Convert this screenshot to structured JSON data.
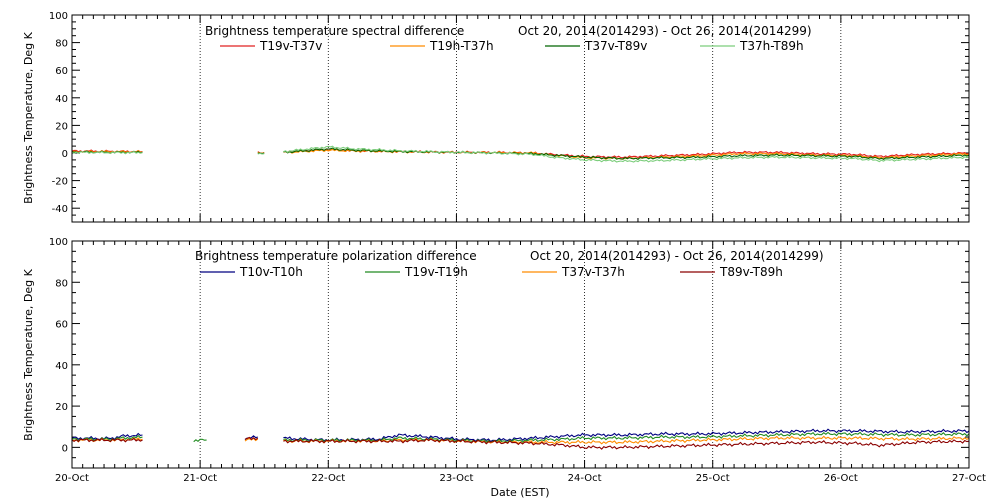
{
  "chart_data": [
    {
      "type": "line",
      "title": "Brightness temperature spectral difference",
      "date_range": "Oct 20, 2014(2014293) - Oct 26, 2014(2014299)",
      "ylabel": "Brightness Temperature, Deg K",
      "xlabel": "",
      "xlim": [
        20,
        27
      ],
      "ylim": [
        -50,
        100
      ],
      "yticks": [
        -40,
        -20,
        0,
        20,
        40,
        60,
        80,
        100
      ],
      "xgrid": [
        21,
        22,
        23,
        24,
        25,
        26
      ],
      "grid": "vertical dotted",
      "legend": "top",
      "series": [
        {
          "name": "T19v-T37v",
          "color": "#e02020",
          "segments": [
            [
              [
                20.0,
                1.5
              ],
              [
                20.3,
                1.2
              ],
              [
                20.55,
                1.0
              ]
            ],
            [
              [
                21.45,
                0.5
              ],
              [
                21.5,
                0.3
              ]
            ],
            [
              [
                21.65,
                0.5
              ],
              [
                21.8,
                1.5
              ],
              [
                22.0,
                2.5
              ],
              [
                22.2,
                1.5
              ],
              [
                22.6,
                1.0
              ],
              [
                23.0,
                0.5
              ],
              [
                23.3,
                0.5
              ],
              [
                23.6,
                0.0
              ],
              [
                23.75,
                -1.0
              ],
              [
                24.0,
                -2.5
              ],
              [
                24.3,
                -3.0
              ],
              [
                24.6,
                -2.0
              ],
              [
                24.9,
                -1.0
              ],
              [
                25.2,
                0.5
              ],
              [
                25.5,
                0.5
              ],
              [
                25.8,
                -0.5
              ],
              [
                26.1,
                -1.0
              ],
              [
                26.3,
                -2.5
              ],
              [
                26.6,
                -1.0
              ],
              [
                27.0,
                0.0
              ]
            ]
          ]
        },
        {
          "name": "T19h-T37h",
          "color": "#ff8c00",
          "segments": [
            [
              [
                20.0,
                1.0
              ],
              [
                20.3,
                1.0
              ],
              [
                20.55,
                0.8
              ]
            ],
            [
              [
                21.45,
                0.5
              ],
              [
                21.5,
                0.2
              ]
            ],
            [
              [
                21.65,
                0.3
              ],
              [
                21.8,
                1.0
              ],
              [
                22.0,
                2.0
              ],
              [
                22.2,
                1.5
              ],
              [
                22.6,
                0.8
              ],
              [
                23.0,
                0.5
              ],
              [
                23.3,
                0.3
              ],
              [
                23.6,
                0.0
              ],
              [
                23.75,
                -1.5
              ],
              [
                24.0,
                -3.5
              ],
              [
                24.3,
                -4.0
              ],
              [
                24.6,
                -3.0
              ],
              [
                24.9,
                -2.0
              ],
              [
                25.2,
                -0.5
              ],
              [
                25.5,
                -0.5
              ],
              [
                25.8,
                -1.5
              ],
              [
                26.1,
                -2.0
              ],
              [
                26.3,
                -3.5
              ],
              [
                26.6,
                -2.0
              ],
              [
                27.0,
                -0.5
              ]
            ]
          ]
        },
        {
          "name": "T37v-T89v",
          "color": "#006400",
          "segments": [
            [
              [
                20.0,
                0.8
              ],
              [
                20.3,
                0.5
              ],
              [
                20.55,
                0.5
              ]
            ],
            [
              [
                21.45,
                0.0
              ],
              [
                21.5,
                0.0
              ]
            ],
            [
              [
                21.65,
                0.5
              ],
              [
                21.8,
                1.5
              ],
              [
                22.0,
                3.0
              ],
              [
                22.2,
                2.0
              ],
              [
                22.6,
                1.0
              ],
              [
                23.0,
                0.5
              ],
              [
                23.3,
                0.0
              ],
              [
                23.6,
                -0.5
              ],
              [
                23.75,
                -1.5
              ],
              [
                24.0,
                -3.0
              ],
              [
                24.3,
                -4.0
              ],
              [
                24.6,
                -3.5
              ],
              [
                24.9,
                -3.0
              ],
              [
                25.2,
                -2.0
              ],
              [
                25.5,
                -1.5
              ],
              [
                25.8,
                -2.0
              ],
              [
                26.1,
                -2.5
              ],
              [
                26.3,
                -4.0
              ],
              [
                26.6,
                -3.0
              ],
              [
                27.0,
                -1.5
              ]
            ]
          ]
        },
        {
          "name": "T37h-T89h",
          "color": "#7ccd7c",
          "segments": [
            [
              [
                20.0,
                0.5
              ],
              [
                20.3,
                0.3
              ],
              [
                20.55,
                0.3
              ]
            ],
            [
              [
                21.45,
                -0.5
              ],
              [
                21.5,
                -0.5
              ]
            ],
            [
              [
                21.65,
                1.0
              ],
              [
                21.8,
                2.5
              ],
              [
                22.0,
                4.5
              ],
              [
                22.2,
                3.0
              ],
              [
                22.6,
                1.5
              ],
              [
                23.0,
                0.5
              ],
              [
                23.3,
                0.0
              ],
              [
                23.6,
                -1.0
              ],
              [
                23.75,
                -3.0
              ],
              [
                24.0,
                -5.0
              ],
              [
                24.3,
                -6.0
              ],
              [
                24.6,
                -5.5
              ],
              [
                24.9,
                -4.5
              ],
              [
                25.2,
                -3.5
              ],
              [
                25.5,
                -3.0
              ],
              [
                25.8,
                -3.5
              ],
              [
                26.1,
                -4.0
              ],
              [
                26.3,
                -5.5
              ],
              [
                26.6,
                -4.5
              ],
              [
                27.0,
                -3.0
              ]
            ]
          ]
        }
      ]
    },
    {
      "type": "line",
      "title": "Brightness temperature polarization difference",
      "date_range": "Oct 20, 2014(2014293) - Oct 26, 2014(2014299)",
      "ylabel": "Brightness Temperature, Deg K",
      "xlabel": "Date (EST)",
      "xlim": [
        20,
        27
      ],
      "ylim": [
        -10,
        100
      ],
      "yticks": [
        0,
        20,
        40,
        60,
        80,
        100
      ],
      "xticks": [
        "20-Oct",
        "21-Oct",
        "22-Oct",
        "23-Oct",
        "24-Oct",
        "25-Oct",
        "26-Oct",
        "27-Oct"
      ],
      "xgrid": [
        21,
        22,
        23,
        24,
        25,
        26
      ],
      "grid": "vertical dotted",
      "legend": "top",
      "series": [
        {
          "name": "T10v-T10h",
          "color": "#000080",
          "segments": [
            [
              [
                20.0,
                4.5
              ],
              [
                20.3,
                4.3
              ],
              [
                20.4,
                5.5
              ],
              [
                20.55,
                6.0
              ]
            ],
            [
              [
                21.35,
                4.5
              ],
              [
                21.45,
                5.0
              ]
            ],
            [
              [
                21.65,
                4.5
              ],
              [
                21.8,
                4.0
              ],
              [
                22.0,
                3.5
              ],
              [
                22.4,
                4.0
              ],
              [
                22.55,
                6.0
              ],
              [
                22.8,
                5.0
              ],
              [
                23.0,
                4.0
              ],
              [
                23.3,
                3.5
              ],
              [
                23.6,
                4.5
              ],
              [
                23.85,
                5.5
              ],
              [
                24.0,
                6.0
              ],
              [
                24.3,
                6.0
              ],
              [
                24.6,
                6.5
              ],
              [
                24.9,
                6.5
              ],
              [
                25.2,
                7.0
              ],
              [
                25.5,
                7.5
              ],
              [
                25.8,
                8.0
              ],
              [
                26.1,
                8.0
              ],
              [
                26.5,
                7.5
              ],
              [
                27.0,
                8.0
              ]
            ]
          ]
        },
        {
          "name": "T19v-T19h",
          "color": "#228b22",
          "segments": [
            [
              [
                20.0,
                4.0
              ],
              [
                20.3,
                4.0
              ],
              [
                20.4,
                4.5
              ],
              [
                20.55,
                5.0
              ]
            ],
            [
              [
                20.95,
                3.5
              ],
              [
                21.05,
                3.5
              ]
            ],
            [
              [
                21.65,
                3.5
              ],
              [
                21.8,
                3.5
              ],
              [
                22.0,
                3.5
              ],
              [
                22.4,
                3.5
              ],
              [
                22.55,
                4.5
              ],
              [
                22.8,
                4.0
              ],
              [
                23.0,
                3.5
              ],
              [
                23.3,
                3.0
              ],
              [
                23.6,
                3.5
              ],
              [
                23.85,
                4.0
              ],
              [
                24.0,
                4.5
              ],
              [
                24.3,
                4.5
              ],
              [
                24.6,
                5.0
              ],
              [
                24.9,
                5.0
              ],
              [
                25.2,
                5.5
              ],
              [
                25.5,
                6.0
              ],
              [
                25.8,
                6.5
              ],
              [
                26.1,
                6.5
              ],
              [
                26.5,
                6.0
              ],
              [
                27.0,
                6.5
              ]
            ]
          ]
        },
        {
          "name": "T37v-T37h",
          "color": "#ff8c00",
          "segments": [
            [
              [
                20.0,
                3.5
              ],
              [
                20.3,
                3.5
              ],
              [
                20.55,
                4.0
              ]
            ],
            [
              [
                21.35,
                3.5
              ],
              [
                21.45,
                4.0
              ]
            ],
            [
              [
                21.65,
                3.0
              ],
              [
                21.8,
                3.0
              ],
              [
                22.0,
                3.0
              ],
              [
                22.4,
                3.0
              ],
              [
                22.55,
                3.5
              ],
              [
                22.8,
                3.5
              ],
              [
                23.0,
                3.0
              ],
              [
                23.3,
                2.5
              ],
              [
                23.6,
                2.5
              ],
              [
                23.85,
                2.5
              ],
              [
                24.0,
                2.5
              ],
              [
                24.3,
                2.5
              ],
              [
                24.6,
                3.0
              ],
              [
                24.9,
                3.5
              ],
              [
                25.2,
                4.0
              ],
              [
                25.5,
                4.5
              ],
              [
                25.8,
                4.5
              ],
              [
                26.1,
                4.5
              ],
              [
                26.5,
                4.0
              ],
              [
                27.0,
                4.5
              ]
            ]
          ]
        },
        {
          "name": "T89v-T89h",
          "color": "#8b0000",
          "segments": [
            [
              [
                20.0,
                3.5
              ],
              [
                20.3,
                3.5
              ],
              [
                20.55,
                3.5
              ]
            ],
            [
              [
                21.35,
                4.0
              ],
              [
                21.45,
                4.5
              ]
            ],
            [
              [
                21.65,
                3.0
              ],
              [
                21.8,
                3.0
              ],
              [
                22.0,
                3.0
              ],
              [
                22.4,
                3.0
              ],
              [
                22.55,
                3.0
              ],
              [
                22.8,
                3.5
              ],
              [
                23.0,
                3.0
              ],
              [
                23.3,
                2.5
              ],
              [
                23.6,
                2.0
              ],
              [
                23.85,
                1.0
              ],
              [
                24.0,
                0.0
              ],
              [
                24.3,
                0.0
              ],
              [
                24.6,
                0.5
              ],
              [
                24.9,
                1.0
              ],
              [
                25.2,
                1.5
              ],
              [
                25.5,
                2.0
              ],
              [
                25.8,
                2.5
              ],
              [
                26.1,
                2.0
              ],
              [
                26.3,
                1.0
              ],
              [
                26.6,
                2.5
              ],
              [
                27.0,
                3.0
              ]
            ]
          ]
        }
      ]
    }
  ]
}
